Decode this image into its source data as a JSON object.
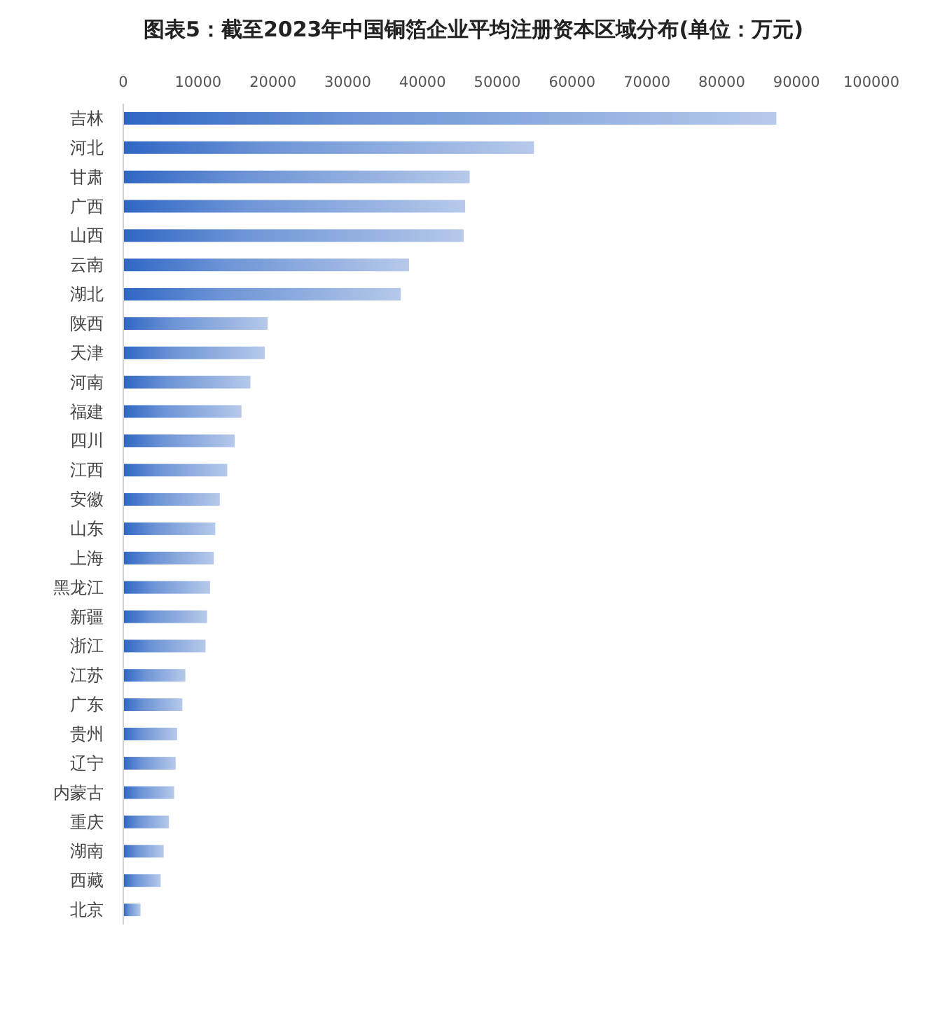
{
  "chart_data": {
    "type": "bar",
    "orientation": "horizontal",
    "title": "图表5：截至2023年中国铜箔企业平均注册资本区域分布(单位：万元)",
    "categories": [
      "吉林",
      "河北",
      "甘肃",
      "广西",
      "山西",
      "云南",
      "湖北",
      "陕西",
      "天津",
      "河南",
      "福建",
      "四川",
      "江西",
      "安徽",
      "山东",
      "上海",
      "黑龙江",
      "新疆",
      "浙江",
      "江苏",
      "广东",
      "贵州",
      "辽宁",
      "内蒙古",
      "重庆",
      "湖南",
      "西藏",
      "北京"
    ],
    "values": [
      87300,
      54900,
      46300,
      45700,
      45500,
      38200,
      37100,
      19300,
      18900,
      17000,
      15800,
      14900,
      13900,
      12900,
      12300,
      12100,
      11600,
      11200,
      11000,
      8300,
      7900,
      7200,
      7000,
      6800,
      6100,
      5400,
      5000,
      2300
    ],
    "color": "#2f66c4",
    "xlim": [
      0,
      100000
    ],
    "xticks": [
      0,
      10000,
      20000,
      30000,
      40000,
      50000,
      60000,
      70000,
      80000,
      90000,
      100000
    ],
    "grid": false
  }
}
